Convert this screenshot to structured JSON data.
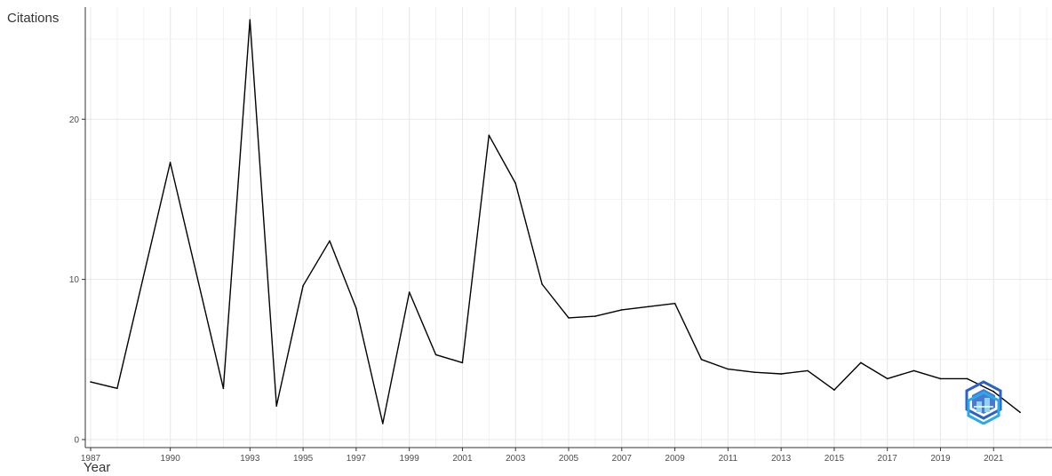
{
  "chart_data": {
    "type": "line",
    "title": "",
    "xlabel": "Year",
    "ylabel": "Citations",
    "xlim": [
      1986.8,
      2023.2
    ],
    "ylim": [
      -0.5,
      27
    ],
    "x_ticks": [
      "1987",
      "1990",
      "1993",
      "1995",
      "1997",
      "1999",
      "2001",
      "2003",
      "2005",
      "2007",
      "2009",
      "2011",
      "2013",
      "2015",
      "2017",
      "2019",
      "2021"
    ],
    "y_ticks": [
      "0",
      "10",
      "20"
    ],
    "grid": true,
    "legend": "none",
    "series": [
      {
        "x": [
          1987,
          1988,
          1990,
          1992,
          1993,
          1994,
          1995,
          1996,
          1997,
          1998,
          1999,
          2000,
          2001,
          2002,
          2003,
          2004,
          2005,
          2006,
          2007,
          2008,
          2009,
          2010,
          2011,
          2012,
          2013,
          2014,
          2015,
          2016,
          2017,
          2018,
          2019,
          2020,
          2021,
          2022
        ],
        "values": [
          3.6,
          3.2,
          17.3,
          3.2,
          26.2,
          2.1,
          9.6,
          12.4,
          8.2,
          1.0,
          9.2,
          5.3,
          4.8,
          19.0,
          16.0,
          9.7,
          7.6,
          7.7,
          8.1,
          8.3,
          8.5,
          5.0,
          4.4,
          4.2,
          4.1,
          4.3,
          3.1,
          4.8,
          3.8,
          4.3,
          3.8,
          3.8,
          3.0,
          1.7
        ],
        "color": "#000000"
      }
    ]
  },
  "watermark": {
    "icon": "hexagon-logo-icon",
    "colors": [
      "#2b62c9",
      "#29a9e6"
    ]
  }
}
